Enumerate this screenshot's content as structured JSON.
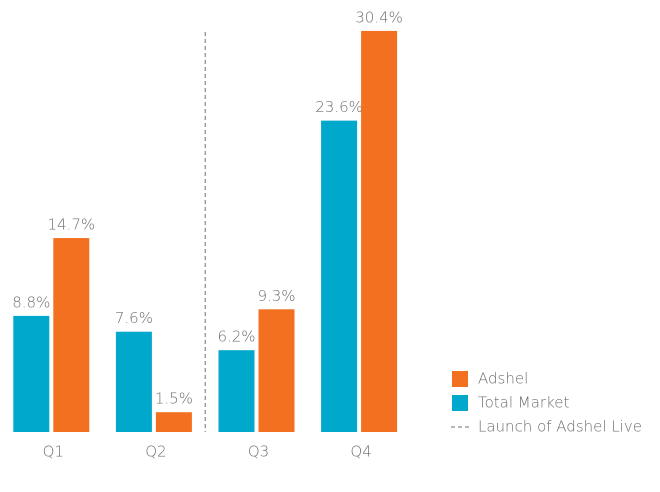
{
  "chart_data": {
    "type": "bar",
    "categories": [
      "Q1",
      "Q2",
      "Q3",
      "Q4"
    ],
    "series": [
      {
        "name": "Total Market",
        "color": "#00a8cc",
        "values": [
          8.8,
          7.6,
          6.2,
          23.6
        ],
        "value_labels": [
          "8.8%",
          "7.6%",
          "6.2%",
          "23.6%"
        ]
      },
      {
        "name": "Adshel",
        "color": "#f37021",
        "values": [
          14.7,
          1.5,
          9.3,
          30.4
        ],
        "value_labels": [
          "14.7%",
          "1.5%",
          "9.3%",
          "30.4%"
        ]
      }
    ],
    "ylim": [
      0,
      31
    ],
    "annotation": {
      "text": "Launch of Adshel Live",
      "between": [
        "Q2",
        "Q3"
      ]
    },
    "legend": "lower right"
  }
}
